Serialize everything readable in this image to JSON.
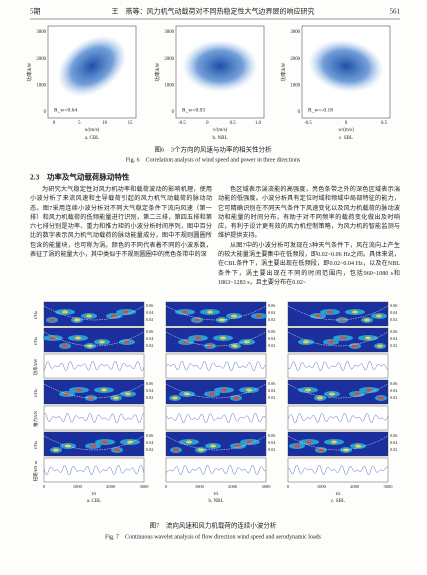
{
  "header": {
    "issue": "5期",
    "running_title": "王　燕等：风力机气动载荷对不同热稳定性大气边界层的响应研究",
    "page": "561"
  },
  "figure6": {
    "y_label": "功率/kW",
    "y_ticks": [
      "3000",
      "2000",
      "1000",
      "0"
    ],
    "panels": [
      {
        "label": "a. CBL",
        "r_label": "R_w=0.64",
        "x_label": "u/(m/s)",
        "x_ticks": [
          "0",
          "5",
          "10",
          "15"
        ]
      },
      {
        "label": "b. NBL",
        "r_label": "R_w=0.03",
        "x_label": "v/(m/s)",
        "x_ticks": [
          "-0.5",
          "0",
          "0.5",
          "1.0"
        ]
      },
      {
        "label": "c. SBL",
        "r_label": "R_w=-0.18",
        "x_label": "w/(m/s)",
        "x_ticks": [
          "-0.5",
          "0",
          "0.5"
        ]
      }
    ],
    "caption_cn": "图6　3个方向的风速与功率的相关性分析",
    "caption_en": "Fig. 6　Correlation analysis of wind speed and power in three directions"
  },
  "section_heading": "2.3　功率及气动载荷脉动特性",
  "left_paragraph": "为研究大气稳定性对风力机功率和载荷波动的影响机理，使用小波分析了来流风速和主导载荷引起的风力机气动载荷的脉动动态。图7采用连续小波分析对不同大气稳定条件下流向风速（第一排）和风力机载荷的低频能量进行识别，第二三排，第四五排和第六七排分别是功率、重力和推力矩的小波分析时间序列，图中百分比的数字表示风力机气动载荷的脉动能量成分，图中不规则圆圈所包含的能量块，也可称为涡。颜色的不同代表着不同的小波系数，表征了涡的能量大小，其中类似于不规则圆圈中的亮色条带中的深",
  "right_paragraphs": [
    "色区域表示湍流能的高强度，亮色条带之外的深色区域表示湍动能的低强度。小波分析具有定位时域和频域中局部特征的能力，它可精确识别在不同天气条件下风速变化以及风力机载荷的脉动波动和能量的时间分布，有助于对不同频率的载荷变化做出及时响应，有利于设计更有效的风力机控制策略，为风力机的智能监测与维护提供支持。",
    "从图7中的小波分析可发现在3种天气条件下，风在流向上产生的较大能量涡主要集中在低频段，即0.02~0.06 Hz之间。具体来说，在CBL条件下，涡主要出现在低频段，即0.02~0.04 Hz，以及在NBL条件下，涡主要出现在不同的时间范围内，包括960~1080 s和1863~1283 s，且主要分布在0.02~"
  ],
  "figure7": {
    "row_labels": [
      "f/Hz",
      "f/Hz",
      "功率/kW",
      "f/Hz",
      "推力/kN",
      "f/Hz",
      "扭矩/kN·m"
    ],
    "freq_ticks": [
      "0.06",
      "0.04",
      "0.02"
    ],
    "x_ticks": [
      "0",
      "1000",
      "2000",
      "3000"
    ],
    "x_label": "t/s",
    "columns": [
      {
        "label": "a. CBL"
      },
      {
        "label": "b. NBL"
      },
      {
        "label": "c. SBL"
      }
    ],
    "caption_cn": "图7　流向风速和风力机载荷的连续小波分析",
    "caption_en": "Fig. 7　Continuous wavelet analysis of flow direction wind speed and aerodynamic loads"
  }
}
